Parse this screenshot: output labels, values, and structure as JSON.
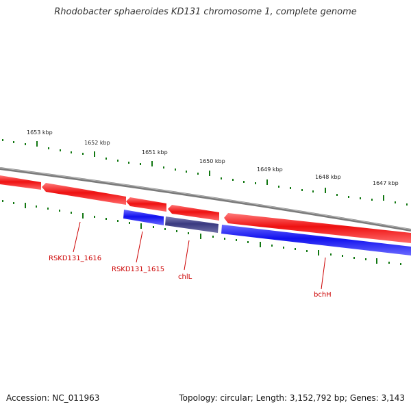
{
  "title": "Rhodobacter sphaeroides KD131 chromosome 1, complete genome",
  "footer": {
    "accession": "Accession: NC_011963",
    "summary": "Topology: circular; Length: 3,152,792 bp; Genes: 3,143"
  },
  "scale_labels": [
    "1653 kbp",
    "1652 kbp",
    "1651 kbp",
    "1650 kbp",
    "1649 kbp",
    "1648 kbp",
    "1647 kbp"
  ],
  "gene_labels": [
    "RSKD131_1616",
    "RSKD131_1615",
    "chlL",
    "bchH"
  ],
  "colors": {
    "backbone": "#7a7a7a",
    "forward_cds": "#ee1111",
    "reverse_cds": "#1111ee",
    "highlight_cds": "#3a3a80",
    "tick": "#117711",
    "label_text": "#cc0000",
    "callout": "#cc0000",
    "scale_text": "#222222"
  }
}
